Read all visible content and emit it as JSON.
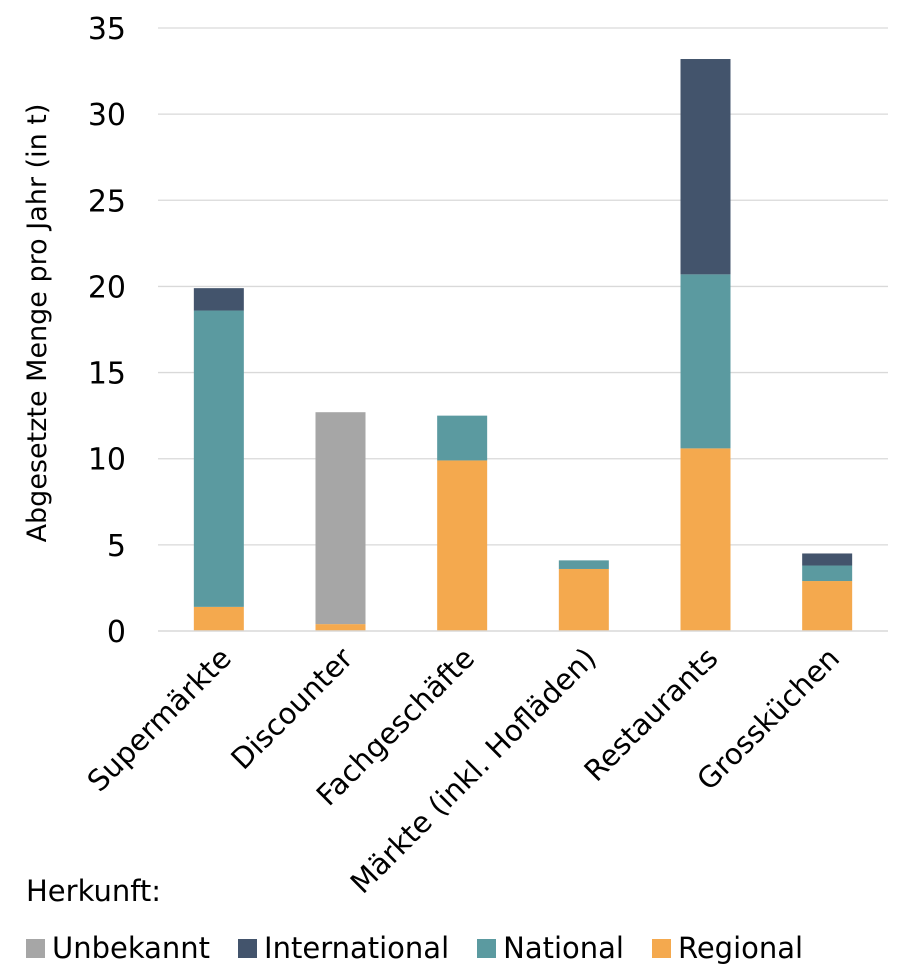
{
  "chart_data": {
    "type": "bar",
    "stacked": true,
    "ylabel": "Abgesetzte Menge pro Jahr (in t)",
    "ylim": [
      0,
      35
    ],
    "yticks": [
      0,
      5,
      10,
      15,
      20,
      25,
      30,
      35
    ],
    "grid": true,
    "categories": [
      "Supermärkte",
      "Discounter",
      "Fachgeschäfte",
      "Märkte (inkl. Hofläden)",
      "Restaurants",
      "Grossküchen"
    ],
    "series": [
      {
        "name": "Regional",
        "color": "#f4a94e",
        "values": [
          1.4,
          0.4,
          9.9,
          3.6,
          10.6,
          2.9
        ]
      },
      {
        "name": "National",
        "color": "#5b9aa0",
        "values": [
          17.2,
          0,
          2.6,
          0.5,
          10.1,
          0.9
        ]
      },
      {
        "name": "International",
        "color": "#43546c",
        "values": [
          1.3,
          0,
          0,
          0,
          12.5,
          0.7
        ]
      },
      {
        "name": "Unbekannt",
        "color": "#a6a6a6",
        "values": [
          0,
          12.3,
          0,
          0,
          0,
          0
        ]
      }
    ],
    "legend": {
      "title": "Herkunft:",
      "position": "bottom",
      "order": [
        "Unbekannt",
        "International",
        "National",
        "Regional"
      ]
    }
  }
}
